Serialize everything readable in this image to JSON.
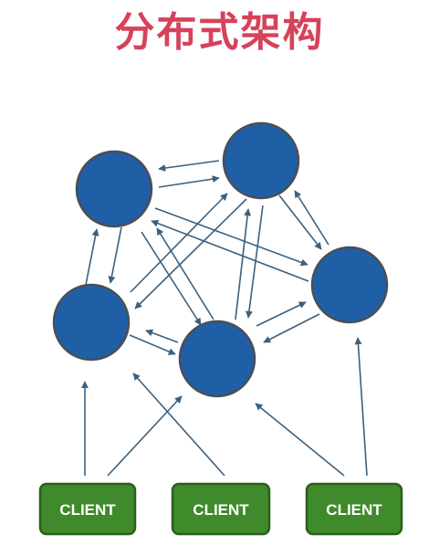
{
  "title": "分布式架构",
  "colors": {
    "title": "#d6425a",
    "node_fill": "#1f5fa6",
    "node_stroke": "#4a4f55",
    "arrow": "#3b607e",
    "client_fill": "#3f8a2b",
    "client_stroke": "#2a5f1c",
    "client_text": "#ffffff"
  },
  "clients": [
    {
      "label": "CLIENT"
    },
    {
      "label": "CLIENT"
    },
    {
      "label": "CLIENT"
    }
  ]
}
